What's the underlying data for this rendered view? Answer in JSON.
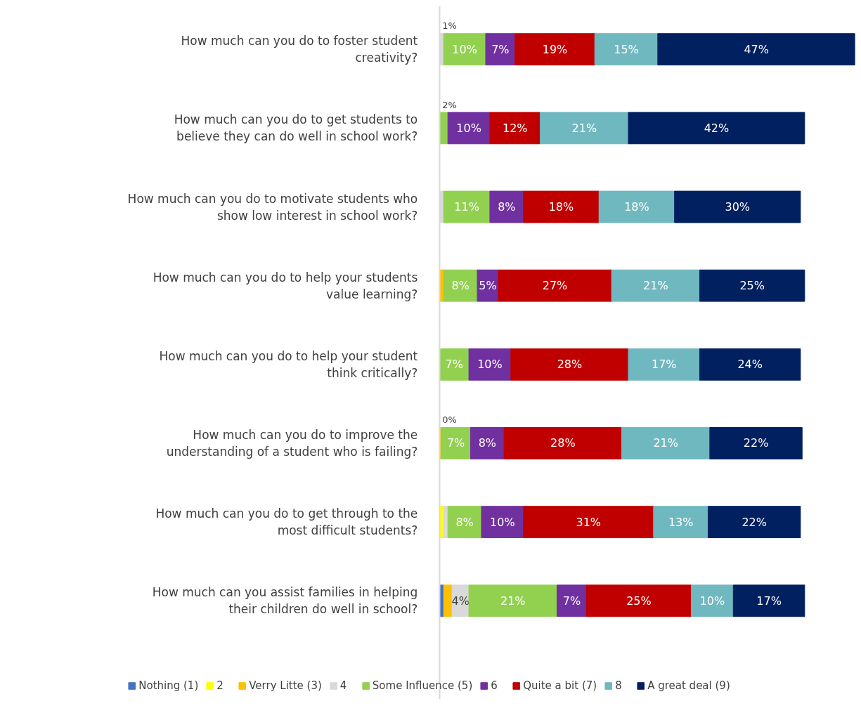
{
  "chart_data": {
    "type": "bar",
    "orientation": "horizontal",
    "stacked": true,
    "categories": [
      "How much can you do to foster student creativity?",
      "How much can you do to get students to believe they can do well in school work?",
      "How much can you do to motivate students who show low interest in school work?",
      "How much can you do to help your students value learning?",
      "How much can you do to help your student think critically?",
      "How much can you do to improve the understanding of a student who is failing?",
      "How much can you do to get through to the most difficult students?",
      "How much can you assist families in helping their children do well in school?"
    ],
    "tick_labels": "y",
    "grid": false,
    "legend": "bottom",
    "series": [
      {
        "name": "Nothing (1)",
        "color": "#4472c4",
        "values": [
          null,
          null,
          null,
          null,
          null,
          null,
          null,
          1
        ],
        "value_labels": [
          null,
          null,
          null,
          null,
          null,
          null,
          null,
          null
        ]
      },
      {
        "name": "2",
        "color": "#ffff00",
        "values": [
          null,
          null,
          null,
          null,
          null,
          null,
          1,
          null
        ],
        "value_labels": [
          null,
          null,
          null,
          null,
          null,
          null,
          null,
          null
        ]
      },
      {
        "name": "Verry Litte (3)",
        "color": "#ffc000",
        "values": [
          null,
          null,
          null,
          1,
          null,
          0.4,
          null,
          2
        ],
        "value_labels": [
          null,
          null,
          null,
          null,
          null,
          "0%",
          null,
          null
        ]
      },
      {
        "name": "4",
        "color": "#d9d9d9",
        "values": [
          1,
          null,
          1,
          null,
          null,
          null,
          1,
          4
        ],
        "value_labels": [
          "1%",
          null,
          null,
          null,
          null,
          null,
          null,
          "4%"
        ]
      },
      {
        "name": "Some Influence (5)",
        "color": "#92d050",
        "values": [
          10,
          2,
          11,
          8,
          7,
          7,
          8,
          21
        ],
        "value_labels": [
          "10%",
          "2%",
          "11%",
          "8%",
          "7%",
          "7%",
          "8%",
          "21%"
        ]
      },
      {
        "name": "6",
        "color": "#7030a0",
        "values": [
          7,
          10,
          8,
          5,
          10,
          8,
          10,
          7
        ],
        "value_labels": [
          "7%",
          "10%",
          "8%",
          "5%",
          "10%",
          "8%",
          "10%",
          "7%"
        ]
      },
      {
        "name": "Quite a bit (7)",
        "color": "#c00000",
        "values": [
          19,
          12,
          18,
          27,
          28,
          28,
          31,
          25
        ],
        "value_labels": [
          "19%",
          "12%",
          "18%",
          "27%",
          "28%",
          "28%",
          "31%",
          "25%"
        ]
      },
      {
        "name": "8",
        "color": "#70b8c0",
        "values": [
          15,
          21,
          18,
          21,
          17,
          21,
          13,
          10
        ],
        "value_labels": [
          "15%",
          "21%",
          "18%",
          "21%",
          "17%",
          "21%",
          "13%",
          "10%"
        ]
      },
      {
        "name": "A great deal (9)",
        "color": "#002060",
        "values": [
          47,
          42,
          30,
          25,
          24,
          22,
          22,
          17
        ],
        "value_labels": [
          "47%",
          "42%",
          "30%",
          "25%",
          "24%",
          "22%",
          "22%",
          "17%"
        ]
      }
    ]
  }
}
